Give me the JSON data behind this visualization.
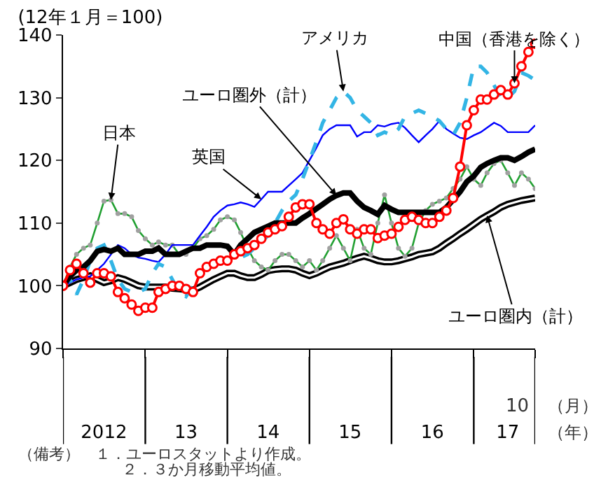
{
  "chart_data": {
    "type": "line",
    "title": "(12年１月＝100)",
    "x": [
      "2012-01",
      "2012-02",
      "2012-03",
      "2012-04",
      "2012-05",
      "2012-06",
      "2012-07",
      "2012-08",
      "2012-09",
      "2012-10",
      "2012-11",
      "2012-12",
      "2013-01",
      "2013-02",
      "2013-03",
      "2013-04",
      "2013-05",
      "2013-06",
      "2013-07",
      "2013-08",
      "2013-09",
      "2013-10",
      "2013-11",
      "2013-12",
      "2014-01",
      "2014-02",
      "2014-03",
      "2014-04",
      "2014-05",
      "2014-06",
      "2014-07",
      "2014-08",
      "2014-09",
      "2014-10",
      "2014-11",
      "2014-12",
      "2015-01",
      "2015-02",
      "2015-03",
      "2015-04",
      "2015-05",
      "2015-06",
      "2015-07",
      "2015-08",
      "2015-09",
      "2015-10",
      "2015-11",
      "2015-12",
      "2016-01",
      "2016-02",
      "2016-03",
      "2016-04",
      "2016-05",
      "2016-06",
      "2016-07",
      "2016-08",
      "2016-09",
      "2016-10",
      "2016-11",
      "2016-12",
      "2017-01",
      "2017-02",
      "2017-03",
      "2017-04",
      "2017-05",
      "2017-06",
      "2017-07",
      "2017-08",
      "2017-09",
      "2017-10"
    ],
    "series": [
      {
        "name": "ユーロ圏内（計）",
        "color": "#000000",
        "values": [
          100,
          100.5,
          101,
          101.3,
          101.6,
          101,
          100.5,
          100.8,
          101.3,
          101,
          100.5,
          100,
          99.8,
          99.8,
          99.8,
          99.8,
          99.6,
          99.5,
          99.4,
          99.3,
          99.8,
          100.4,
          101,
          101.5,
          102,
          102,
          101.6,
          101.3,
          101.3,
          101.8,
          102.4,
          102.6,
          102.7,
          102.7,
          102.5,
          102,
          101.6,
          102,
          102.5,
          103,
          103.3,
          103.6,
          104,
          104.4,
          104.7,
          104.4,
          104,
          103.8,
          103.8,
          104,
          104.3,
          104.6,
          105,
          105.2,
          105.4,
          106,
          106.8,
          107.5,
          108.3,
          109,
          109.8,
          110.6,
          111.2,
          111.8,
          112.5,
          113,
          113.3,
          113.6,
          113.8,
          114
        ]
      },
      {
        "name": "日本",
        "color": "#22a032",
        "marker": "circle",
        "values": [
          100,
          103,
          105,
          106,
          106.5,
          110,
          113.5,
          113.7,
          111.5,
          111.5,
          111,
          108.8,
          107.5,
          106.5,
          107,
          106.5,
          106.5,
          105,
          105,
          106,
          107.5,
          108,
          109,
          110.5,
          111,
          110.5,
          108.5,
          106,
          104,
          103,
          102.5,
          104,
          105,
          105,
          104,
          103,
          104,
          102.5,
          104,
          106,
          108,
          106,
          104,
          109,
          106,
          105,
          110,
          114.5,
          110,
          106,
          104.7,
          106,
          110,
          112,
          113,
          113.5,
          114,
          115.5,
          117,
          119,
          117,
          116,
          118,
          119.5,
          120,
          118,
          116,
          118,
          117,
          115.5
        ]
      },
      {
        "name": "英国",
        "color": "#0000ff",
        "values": [
          100,
          100.5,
          101,
          101.3,
          101.5,
          102.5,
          103.5,
          105,
          106.5,
          106,
          105,
          104.5,
          104.3,
          104,
          103.8,
          105,
          106.5,
          106.5,
          106.5,
          106.5,
          108,
          109.4,
          111,
          112,
          112.8,
          113,
          113.3,
          113,
          112.6,
          113.8,
          115,
          115,
          115,
          116,
          117,
          118,
          120,
          122,
          124,
          125,
          125.6,
          125.6,
          125.6,
          123.8,
          124.5,
          124.5,
          125.6,
          125.4,
          125.8,
          126,
          125.2,
          124,
          122.9,
          124,
          125,
          126.3,
          125,
          124.3,
          123.6,
          123.4,
          124,
          124.5,
          125.2,
          126,
          125.5,
          124.5,
          124.5,
          124.5,
          124.5,
          125.6
        ]
      },
      {
        "name": "アメリカ",
        "color": "#33b5e5",
        "line_style": "dashed",
        "values": [
          100,
          101,
          98.6,
          101,
          104,
          106,
          106.5,
          104,
          101,
          99.5,
          99,
          99,
          99.5,
          102,
          103.5,
          103,
          101,
          99,
          98.3,
          100,
          102,
          103,
          103.5,
          103.5,
          104,
          104,
          104.5,
          105,
          106,
          107,
          108,
          110,
          112,
          113.5,
          114.5,
          117,
          120,
          123,
          126,
          128,
          130,
          131,
          130,
          128,
          127,
          126,
          124,
          124.5,
          124,
          125,
          127,
          127.5,
          128,
          127.5,
          127,
          126.3,
          125,
          124,
          126,
          130,
          135,
          135,
          134,
          132,
          130,
          130,
          131,
          134,
          133.5,
          132.8
        ]
      },
      {
        "name": "ユーロ圏外（計）",
        "color": "#000000",
        "values": [
          100,
          101.5,
          102.5,
          103,
          104,
          105.5,
          105.8,
          105.5,
          106,
          105,
          105,
          105,
          105.5,
          105.5,
          106,
          105,
          105,
          105,
          105.5,
          106,
          106,
          106.5,
          106.5,
          106.5,
          106.3,
          105,
          106.5,
          107.5,
          108.5,
          109,
          109.5,
          110,
          110,
          110,
          110,
          110.8,
          111.5,
          112.3,
          113,
          113.8,
          114.4,
          114.8,
          114.8,
          113.5,
          112.5,
          112,
          111.4,
          112.8,
          112.2,
          111.7,
          111.7,
          111.7,
          111.7,
          111.7,
          111.7,
          111.7,
          112.5,
          113.7,
          115,
          116.6,
          117.5,
          118.9,
          119.5,
          120,
          120.4,
          120.4,
          120,
          120.6,
          121.3,
          121.8
        ]
      },
      {
        "name": "中国（香港を除く）",
        "color": "#ff0000",
        "marker": "circle",
        "values": [
          100,
          102.5,
          103.5,
          102,
          100.5,
          102,
          102,
          101.5,
          99,
          98,
          97,
          96,
          96.5,
          96.5,
          99,
          99.5,
          100,
          100,
          99.5,
          99,
          102,
          103,
          103.5,
          104,
          104,
          105,
          105.5,
          106,
          106.5,
          107.5,
          108.5,
          109,
          109.5,
          111,
          112.5,
          113,
          113,
          110,
          109,
          108.3,
          110,
          110.6,
          109,
          108.3,
          109,
          109,
          107.6,
          108,
          108.3,
          109.4,
          110.5,
          111,
          110.5,
          110,
          110,
          111,
          112,
          114,
          119,
          125.6,
          128,
          129.7,
          129.7,
          130.5,
          131.2,
          130.5,
          132.3,
          135,
          137.3,
          138.6
        ]
      }
    ],
    "xlim": [
      "2012-01",
      "2017-10"
    ],
    "xticks": [
      {
        "value": "2012-01",
        "label": null
      },
      {
        "value": "2012-07",
        "label": "2012"
      },
      {
        "value": "2013-01",
        "label": null
      },
      {
        "value": "2013-07",
        "label": "13"
      },
      {
        "value": "2014-01",
        "label": null
      },
      {
        "value": "2014-07",
        "label": "14"
      },
      {
        "value": "2015-01",
        "label": null
      },
      {
        "value": "2015-07",
        "label": "15"
      },
      {
        "value": "2016-01",
        "label": null
      },
      {
        "value": "2016-07",
        "label": "16"
      },
      {
        "value": "2017-01",
        "label": null
      },
      {
        "value": "2017-06",
        "label": "17"
      },
      {
        "value": "2017-10",
        "label": null
      }
    ],
    "ylim": [
      90,
      140
    ],
    "yticks": [
      90,
      100,
      110,
      120,
      130,
      140
    ],
    "annotations": [
      "10",
      "（月）",
      "（年）",
      "（備考）　１．ユーロスタットより作成。",
      "２．３か月移動平均値。"
    ]
  }
}
